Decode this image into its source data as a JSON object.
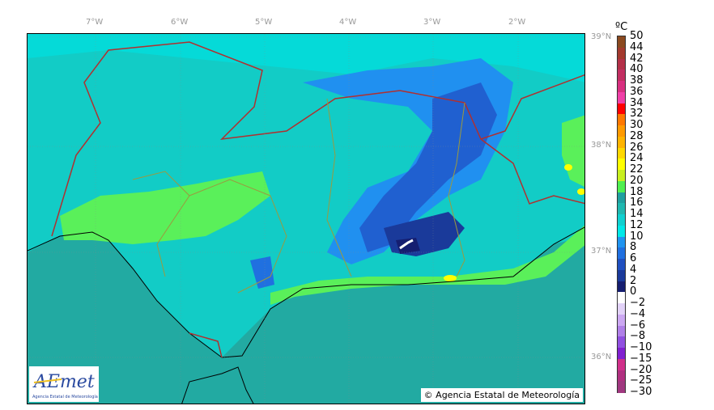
{
  "longitude_labels": [
    "7°W",
    "6°W",
    "5°W",
    "4°W",
    "3°W",
    "2°W"
  ],
  "latitude_labels": [
    "39°N",
    "38°N",
    "37°N",
    "36°N"
  ],
  "colorbar": {
    "unit": "ºC",
    "labels": [
      "50",
      "44",
      "42",
      "40",
      "38",
      "36",
      "34",
      "32",
      "30",
      "28",
      "26",
      "24",
      "22",
      "20",
      "18",
      "16",
      "14",
      "12",
      "10",
      "8",
      "6",
      "4",
      "2",
      "0",
      "−2",
      "−4",
      "−6",
      "−8",
      "−10",
      "−15",
      "−20",
      "−25",
      "−30"
    ],
    "colors": [
      "#8b4a20",
      "#a33a2e",
      "#b33048",
      "#c22f62",
      "#d83080",
      "#f040a8",
      "#ff0000",
      "#ff7800",
      "#ff9a00",
      "#ffb400",
      "#ffd800",
      "#ffff00",
      "#c8f020",
      "#50f050",
      "#20a0a0",
      "#20b8b0",
      "#10d0d0",
      "#00e8e8",
      "#2094f0",
      "#2070e0",
      "#2050c0",
      "#1a3a9a",
      "#151e70",
      "#ffffff",
      "#e2d2f8",
      "#cca8f2",
      "#b080e8",
      "#9050e0",
      "#8020d0",
      "#d0308a",
      "#b03080",
      "#a03880",
      "#804080"
    ]
  },
  "logo": {
    "name": "AEmet",
    "subtitle": "Agencia Estatal de Meteorología"
  },
  "copyright": "© Agencia Estatal de Meteorología"
}
